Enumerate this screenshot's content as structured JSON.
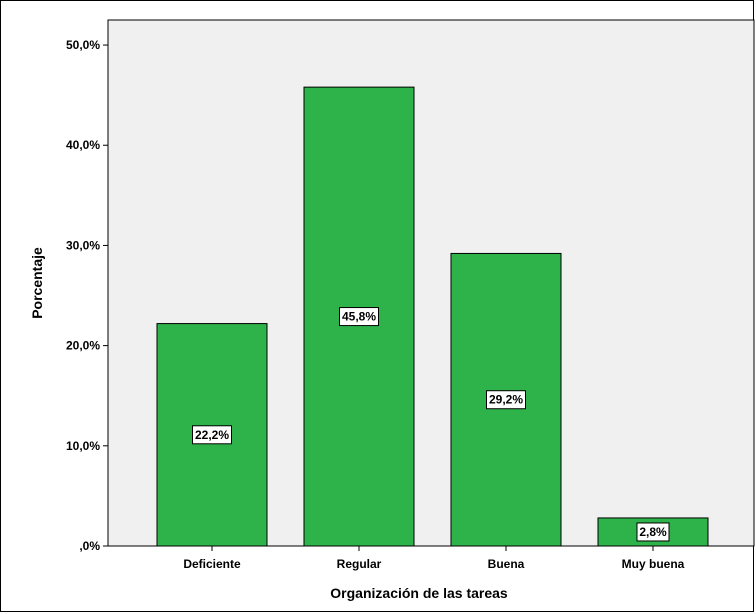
{
  "chart_data": {
    "type": "bar",
    "categories": [
      "Deficiente",
      "Regular",
      "Buena",
      "Muy buena"
    ],
    "values": [
      22.2,
      45.8,
      29.2,
      2.8
    ],
    "data_labels": [
      "22,2%",
      "45,8%",
      "29,2%",
      "2,8%"
    ],
    "xlabel": "Organización de las tareas",
    "ylabel": "Porcentaje",
    "ylim": [
      0,
      52.5
    ],
    "yticks": [
      0,
      10,
      20,
      30,
      40,
      50
    ],
    "ytick_labels": [
      ",0%",
      "10,0%",
      "20,0%",
      "30,0%",
      "40,0%",
      "50,0%"
    ],
    "grid": false,
    "colors": {
      "bar_fill": "#2db34a",
      "bar_stroke": "#000000",
      "plot_background": "#f0f0f0",
      "label_box": "#ffffff"
    }
  }
}
